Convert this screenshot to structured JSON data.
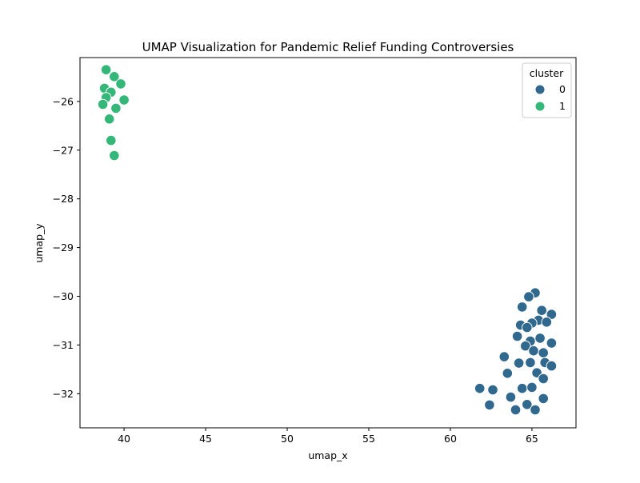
{
  "chart_data": {
    "type": "scatter",
    "title": "UMAP Visualization for Pandemic Relief Funding Controversies",
    "xlabel": "umap_x",
    "ylabel": "umap_y",
    "xlim": [
      37.3,
      67.7
    ],
    "ylim": [
      -32.7,
      -25.1
    ],
    "xticks": [
      {
        "value": 40,
        "label": "40"
      },
      {
        "value": 45,
        "label": "45"
      },
      {
        "value": 50,
        "label": "50"
      },
      {
        "value": 55,
        "label": "55"
      },
      {
        "value": 60,
        "label": "60"
      },
      {
        "value": 65,
        "label": "65"
      }
    ],
    "yticks": [
      {
        "value": -26,
        "label": "−26"
      },
      {
        "value": -27,
        "label": "−27"
      },
      {
        "value": -28,
        "label": "−28"
      },
      {
        "value": -29,
        "label": "−29"
      },
      {
        "value": -30,
        "label": "−30"
      },
      {
        "value": -31,
        "label": "−31"
      },
      {
        "value": -32,
        "label": "−32"
      }
    ],
    "grid": false,
    "legend": {
      "title": "cluster",
      "placement": "top-right",
      "entries": [
        {
          "label": "0",
          "color": "#30688e"
        },
        {
          "label": "1",
          "color": "#35b779"
        }
      ]
    },
    "series": [
      {
        "name": "0",
        "color": "#30688e",
        "points": [
          {
            "x": 65.2,
            "y": -29.93
          },
          {
            "x": 64.8,
            "y": -30.01
          },
          {
            "x": 64.4,
            "y": -30.22
          },
          {
            "x": 65.6,
            "y": -30.29
          },
          {
            "x": 66.2,
            "y": -30.37
          },
          {
            "x": 65.4,
            "y": -30.49
          },
          {
            "x": 65.0,
            "y": -30.55
          },
          {
            "x": 65.9,
            "y": -30.53
          },
          {
            "x": 64.3,
            "y": -30.59
          },
          {
            "x": 64.7,
            "y": -30.64
          },
          {
            "x": 64.1,
            "y": -30.82
          },
          {
            "x": 65.5,
            "y": -30.86
          },
          {
            "x": 64.9,
            "y": -30.92
          },
          {
            "x": 66.2,
            "y": -30.96
          },
          {
            "x": 64.6,
            "y": -31.02
          },
          {
            "x": 65.1,
            "y": -31.12
          },
          {
            "x": 65.7,
            "y": -31.16
          },
          {
            "x": 63.3,
            "y": -31.24
          },
          {
            "x": 64.9,
            "y": -31.36
          },
          {
            "x": 64.2,
            "y": -31.37
          },
          {
            "x": 65.8,
            "y": -31.36
          },
          {
            "x": 66.2,
            "y": -31.43
          },
          {
            "x": 65.3,
            "y": -31.57
          },
          {
            "x": 63.5,
            "y": -31.58
          },
          {
            "x": 65.7,
            "y": -31.69
          },
          {
            "x": 61.8,
            "y": -31.89
          },
          {
            "x": 62.6,
            "y": -31.92
          },
          {
            "x": 64.4,
            "y": -31.89
          },
          {
            "x": 65.0,
            "y": -31.87
          },
          {
            "x": 63.7,
            "y": -32.07
          },
          {
            "x": 65.7,
            "y": -32.1
          },
          {
            "x": 62.4,
            "y": -32.23
          },
          {
            "x": 64.7,
            "y": -32.22
          },
          {
            "x": 64.0,
            "y": -32.33
          },
          {
            "x": 65.2,
            "y": -32.33
          }
        ]
      },
      {
        "name": "1",
        "color": "#35b779",
        "points": [
          {
            "x": 38.9,
            "y": -25.35
          },
          {
            "x": 39.4,
            "y": -25.49
          },
          {
            "x": 39.8,
            "y": -25.64
          },
          {
            "x": 38.8,
            "y": -25.73
          },
          {
            "x": 39.2,
            "y": -25.81
          },
          {
            "x": 38.9,
            "y": -25.92
          },
          {
            "x": 40.0,
            "y": -25.97
          },
          {
            "x": 38.7,
            "y": -26.06
          },
          {
            "x": 39.5,
            "y": -26.14
          },
          {
            "x": 39.1,
            "y": -26.36
          },
          {
            "x": 39.2,
            "y": -26.8
          },
          {
            "x": 39.4,
            "y": -27.11
          }
        ]
      }
    ]
  }
}
